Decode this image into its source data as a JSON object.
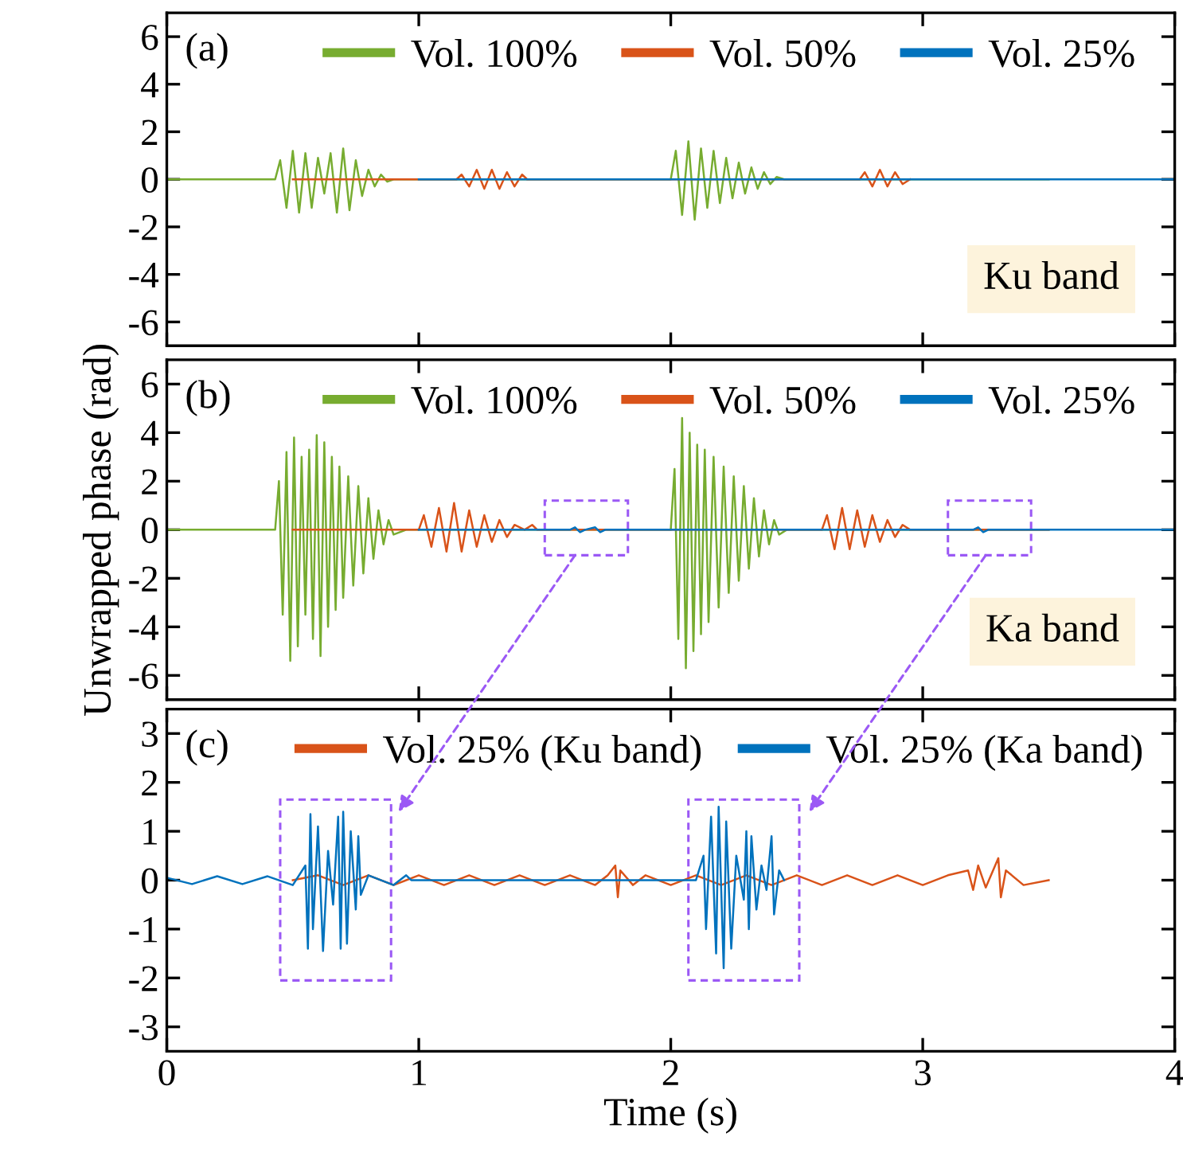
{
  "chart_data": [
    {
      "type": "line",
      "annotations": [
        "(a)",
        "Ku band"
      ],
      "xlim": [
        0,
        4
      ],
      "xticks": [
        0,
        1,
        2,
        3,
        4
      ],
      "ylim": [
        -7,
        7
      ],
      "yticks": [
        -6,
        -4,
        -2,
        0,
        2,
        4,
        6
      ],
      "tick_labels": "y",
      "legend": "top",
      "grid": false,
      "series": [
        {
          "name": "Vol. 100%",
          "color": "#77ac30",
          "x": [
            0,
            0.43,
            0.45,
            0.475,
            0.5,
            0.525,
            0.55,
            0.575,
            0.6,
            0.625,
            0.65,
            0.675,
            0.7,
            0.725,
            0.75,
            0.775,
            0.8,
            0.825,
            0.85,
            0.875,
            0.9,
            2.0,
            2.02,
            2.045,
            2.07,
            2.095,
            2.12,
            2.145,
            2.17,
            2.195,
            2.22,
            2.245,
            2.27,
            2.295,
            2.32,
            2.345,
            2.37,
            2.395,
            2.42,
            2.45,
            3.5
          ],
          "values": [
            0,
            0,
            0.8,
            -1.2,
            1.2,
            -1.4,
            1.1,
            -1.2,
            0.9,
            -0.6,
            1.1,
            -1.4,
            1.3,
            -1.3,
            0.8,
            -0.7,
            0.4,
            -0.3,
            0.2,
            -0.1,
            0,
            0,
            1.2,
            -1.5,
            1.6,
            -1.7,
            1.3,
            -1.2,
            1.2,
            -1.0,
            0.9,
            -0.8,
            0.7,
            -0.6,
            0.5,
            -0.4,
            0.3,
            -0.2,
            0.1,
            0,
            0
          ]
        },
        {
          "name": "Vol. 50%",
          "color": "#d95319",
          "x": [
            0.5,
            1.15,
            1.17,
            1.2,
            1.23,
            1.26,
            1.29,
            1.32,
            1.35,
            1.38,
            1.41,
            1.43,
            2.75,
            2.77,
            2.8,
            2.83,
            2.86,
            2.89,
            2.92,
            2.95
          ],
          "values": [
            0,
            0,
            0.2,
            -0.3,
            0.4,
            -0.4,
            0.4,
            -0.4,
            0.3,
            -0.3,
            0.2,
            0,
            0,
            0.3,
            -0.3,
            0.4,
            -0.3,
            0.3,
            -0.2,
            0
          ]
        },
        {
          "name": "Vol. 25%",
          "color": "#0072bd",
          "x": [
            1.0,
            4.0
          ],
          "values": [
            0,
            0
          ]
        }
      ]
    },
    {
      "type": "line",
      "ylabel": "Unwrapped phase (rad)",
      "annotations": [
        "(b)",
        "Ka band"
      ],
      "xlim": [
        0,
        4
      ],
      "xticks": [
        0,
        1,
        2,
        3,
        4
      ],
      "ylim": [
        -7,
        7
      ],
      "yticks": [
        -6,
        -4,
        -2,
        0,
        2,
        4,
        6
      ],
      "tick_labels": "y",
      "legend": "top",
      "grid": false,
      "series": [
        {
          "name": "Vol. 100%",
          "color": "#77ac30",
          "x": [
            0,
            0.43,
            0.445,
            0.46,
            0.475,
            0.49,
            0.505,
            0.52,
            0.535,
            0.55,
            0.565,
            0.58,
            0.595,
            0.61,
            0.625,
            0.64,
            0.655,
            0.67,
            0.685,
            0.7,
            0.72,
            0.74,
            0.76,
            0.78,
            0.8,
            0.82,
            0.84,
            0.86,
            0.88,
            0.9,
            0.95,
            2.0,
            2.015,
            2.03,
            2.045,
            2.06,
            2.075,
            2.09,
            2.105,
            2.12,
            2.135,
            2.15,
            2.17,
            2.19,
            2.21,
            2.23,
            2.25,
            2.27,
            2.29,
            2.31,
            2.33,
            2.35,
            2.37,
            2.39,
            2.41,
            2.43,
            2.46,
            3.5
          ],
          "values": [
            0,
            0,
            2.0,
            -3.5,
            3.2,
            -5.4,
            3.8,
            -4.8,
            3.0,
            -3.5,
            3.3,
            -4.5,
            3.9,
            -5.2,
            3.6,
            -4.0,
            3.0,
            -3.3,
            2.6,
            -2.8,
            2.2,
            -2.3,
            1.8,
            -1.8,
            1.3,
            -1.2,
            0.8,
            -0.6,
            0.4,
            -0.2,
            0,
            0,
            2.5,
            -4.5,
            4.6,
            -5.7,
            4.0,
            -5.0,
            3.5,
            -4.3,
            3.3,
            -3.8,
            3.0,
            -3.2,
            2.6,
            -2.6,
            2.2,
            -2.1,
            1.8,
            -1.6,
            1.3,
            -1.1,
            0.8,
            -0.6,
            0.4,
            -0.2,
            0,
            0
          ]
        },
        {
          "name": "Vol. 50%",
          "color": "#d95319",
          "x": [
            0.5,
            1.0,
            1.02,
            1.05,
            1.08,
            1.11,
            1.14,
            1.17,
            1.2,
            1.23,
            1.26,
            1.29,
            1.32,
            1.35,
            1.38,
            1.42,
            1.45,
            1.47,
            2.6,
            2.62,
            2.65,
            2.68,
            2.71,
            2.74,
            2.77,
            2.8,
            2.83,
            2.86,
            2.89,
            2.92,
            2.95,
            3.5
          ],
          "values": [
            0,
            0,
            0.6,
            -0.7,
            0.9,
            -0.9,
            1.1,
            -0.9,
            0.8,
            -0.7,
            0.6,
            -0.5,
            0.4,
            -0.3,
            0.2,
            0,
            0.2,
            0,
            0,
            0.6,
            -0.8,
            0.9,
            -0.8,
            0.8,
            -0.7,
            0.6,
            -0.5,
            0.4,
            -0.3,
            0.2,
            0,
            0
          ]
        },
        {
          "name": "Vol. 25%",
          "color": "#0072bd",
          "x": [
            1.0,
            1.6,
            1.62,
            1.64,
            1.66,
            1.7,
            1.72,
            1.74,
            3.2,
            3.22,
            3.24,
            3.26,
            4.0
          ],
          "values": [
            0,
            0,
            0.1,
            -0.1,
            0,
            0.1,
            -0.1,
            0,
            0,
            0.1,
            -0.1,
            0,
            0
          ]
        }
      ]
    },
    {
      "type": "line",
      "xlabel": "Time (s)",
      "annotations": [
        "(c)"
      ],
      "xlim": [
        0,
        4
      ],
      "xticks": [
        0,
        1,
        2,
        3,
        4
      ],
      "ylim": [
        -3.5,
        3.5
      ],
      "yticks": [
        -3,
        -2,
        -1,
        0,
        1,
        2,
        3
      ],
      "legend": "top",
      "grid": false,
      "series": [
        {
          "name": "Vol. 25% (Ku band)",
          "color": "#d95319",
          "x": [
            0.5,
            0.6,
            0.7,
            0.8,
            0.9,
            1.0,
            1.1,
            1.2,
            1.3,
            1.4,
            1.5,
            1.6,
            1.7,
            1.75,
            1.78,
            1.79,
            1.8,
            1.85,
            1.9,
            2.0,
            2.1,
            2.2,
            2.3,
            2.4,
            2.5,
            2.6,
            2.7,
            2.8,
            2.9,
            3.0,
            3.1,
            3.18,
            3.2,
            3.22,
            3.25,
            3.3,
            3.31,
            3.33,
            3.4,
            3.5
          ],
          "values": [
            0,
            0.1,
            -0.1,
            0.1,
            -0.1,
            0.1,
            -0.1,
            0.1,
            -0.1,
            0.1,
            -0.1,
            0.1,
            -0.1,
            0.1,
            0.3,
            -0.35,
            0.2,
            -0.1,
            0.1,
            -0.1,
            0.1,
            -0.1,
            0.1,
            -0.1,
            0.1,
            -0.1,
            0.1,
            -0.1,
            0.1,
            -0.1,
            0.1,
            0.2,
            -0.2,
            0.3,
            -0.15,
            0.45,
            -0.35,
            0.2,
            -0.1,
            0
          ]
        },
        {
          "name": "Vol. 25% (Ka band)",
          "color": "#0072bd",
          "x": [
            0,
            0.1,
            0.2,
            0.3,
            0.4,
            0.5,
            0.55,
            0.56,
            0.57,
            0.58,
            0.6,
            0.62,
            0.64,
            0.66,
            0.68,
            0.69,
            0.7,
            0.715,
            0.73,
            0.75,
            0.76,
            0.77,
            0.8,
            0.9,
            0.95,
            0.97,
            2.1,
            2.13,
            2.14,
            2.16,
            2.18,
            2.19,
            2.21,
            2.22,
            2.24,
            2.26,
            2.29,
            2.3,
            2.31,
            2.32,
            2.34,
            2.36,
            2.38,
            2.4,
            2.41,
            2.43,
            2.45
          ],
          "values": [
            0.05,
            -0.08,
            0.08,
            -0.08,
            0.08,
            -0.1,
            0.3,
            -1.4,
            1.35,
            -1.0,
            1.1,
            -1.45,
            0.6,
            -0.5,
            1.3,
            -1.4,
            1.4,
            -1.3,
            1.0,
            -0.6,
            0.9,
            -0.3,
            0.1,
            -0.1,
            0.1,
            0,
            0,
            0.5,
            -1.0,
            1.3,
            -1.5,
            1.5,
            -1.8,
            1.2,
            -1.4,
            0.5,
            -0.4,
            1.0,
            -1.0,
            0.9,
            -0.6,
            0.3,
            -0.2,
            0.9,
            -0.7,
            0.2,
            0
          ]
        }
      ]
    }
  ]
}
